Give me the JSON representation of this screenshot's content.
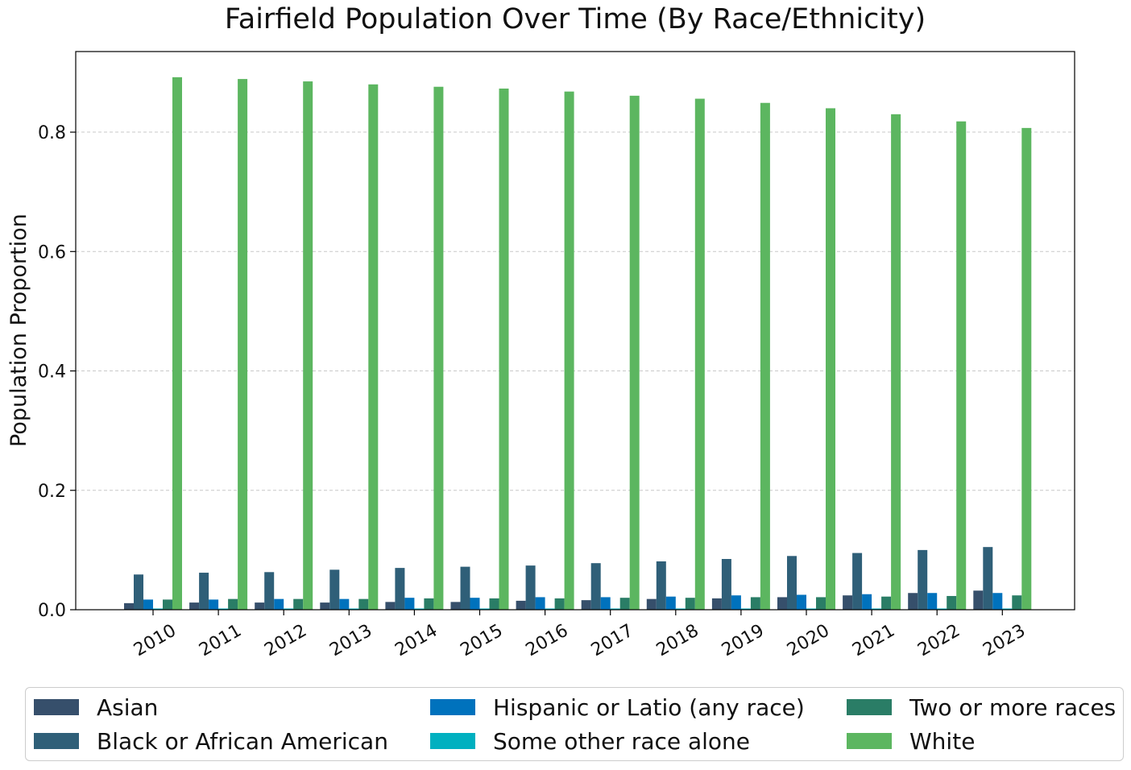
{
  "chart_data": {
    "type": "bar",
    "title": "Fairfield Population Over Time (By Race/Ethnicity)",
    "xlabel": "",
    "ylabel": "Population Proportion",
    "ylim": [
      0,
      0.935
    ],
    "yticks": [
      "0.0",
      "0.2",
      "0.4",
      "0.6",
      "0.8"
    ],
    "grid": "horizontal dashed",
    "legend_position": "bottom",
    "categories": [
      "2010",
      "2011",
      "2012",
      "2013",
      "2014",
      "2015",
      "2016",
      "2017",
      "2018",
      "2019",
      "2020",
      "2021",
      "2022",
      "2023"
    ],
    "series": [
      {
        "name": "Asian",
        "color": "#364f6b",
        "values": [
          0.011,
          0.012,
          0.012,
          0.012,
          0.013,
          0.013,
          0.015,
          0.016,
          0.018,
          0.019,
          0.021,
          0.024,
          0.028,
          0.032
        ]
      },
      {
        "name": "Black or African American",
        "color": "#2f5f78",
        "values": [
          0.059,
          0.062,
          0.063,
          0.067,
          0.07,
          0.072,
          0.074,
          0.078,
          0.081,
          0.085,
          0.09,
          0.095,
          0.1,
          0.105
        ]
      },
      {
        "name": "Hispanic or Latio (any race)",
        "color": "#0072bd",
        "values": [
          0.017,
          0.017,
          0.018,
          0.018,
          0.02,
          0.02,
          0.021,
          0.021,
          0.022,
          0.024,
          0.025,
          0.026,
          0.028,
          0.028
        ]
      },
      {
        "name": "Some other race alone",
        "color": "#00b0c0",
        "values": [
          0.002,
          0.002,
          0.002,
          0.002,
          0.002,
          0.002,
          0.002,
          0.002,
          0.002,
          0.002,
          0.002,
          0.002,
          0.002,
          0.002
        ]
      },
      {
        "name": "Two or more races",
        "color": "#2a7d66",
        "values": [
          0.017,
          0.018,
          0.018,
          0.018,
          0.019,
          0.019,
          0.019,
          0.02,
          0.02,
          0.021,
          0.021,
          0.022,
          0.023,
          0.024
        ]
      },
      {
        "name": "White",
        "color": "#5cb660",
        "values": [
          0.892,
          0.889,
          0.885,
          0.88,
          0.876,
          0.873,
          0.868,
          0.861,
          0.856,
          0.849,
          0.84,
          0.83,
          0.818,
          0.807
        ]
      }
    ]
  }
}
